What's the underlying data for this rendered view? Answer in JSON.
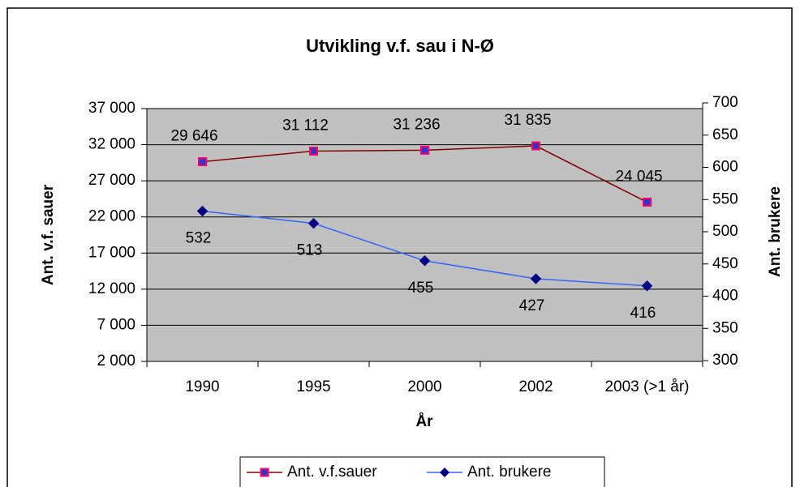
{
  "chart_data": {
    "type": "line",
    "title": "Utvikling v.f. sau i N-Ø",
    "xlabel": "År",
    "ylabel": "Ant. v.f. sauer",
    "y2label": "Ant. brukere",
    "categories": [
      "1990",
      "1995",
      "2000",
      "2002",
      "2003 (>1 år)"
    ],
    "series": [
      {
        "name": "Ant. v.f.sauer",
        "color": "#800000",
        "marker_color": "#3333cc",
        "marker_edge": "#ff0066",
        "marker": "square",
        "values": [
          29646,
          31112,
          31236,
          31835,
          24045
        ],
        "value_labels": [
          "29 646",
          "31 112",
          "31 236",
          "31 835",
          "24 045"
        ]
      },
      {
        "name": "Ant. brukere",
        "color": "#3366ff",
        "marker_color": "#000080",
        "marker_edge": "#000080",
        "marker": "diamond",
        "axis": "y2",
        "values": [
          532,
          513,
          455,
          427,
          416
        ]
      }
    ],
    "ylim": [
      2000,
      37000
    ],
    "yticks": [
      {
        "value": 2000,
        "label": "2 000"
      },
      {
        "value": 7000,
        "label": "7 000"
      },
      {
        "value": 12000,
        "label": "12 000"
      },
      {
        "value": 17000,
        "label": "17 000"
      },
      {
        "value": 22000,
        "label": "22 000"
      },
      {
        "value": 27000,
        "label": "27 000"
      },
      {
        "value": 32000,
        "label": "32 000"
      },
      {
        "value": 37000,
        "label": "37 000"
      }
    ],
    "y2lim": [
      300,
      700
    ],
    "y2ticks": [
      300,
      350,
      400,
      450,
      500,
      550,
      600,
      650,
      700
    ],
    "grid": true,
    "plot_background": "#c0c0c0",
    "legend": "bottom"
  }
}
